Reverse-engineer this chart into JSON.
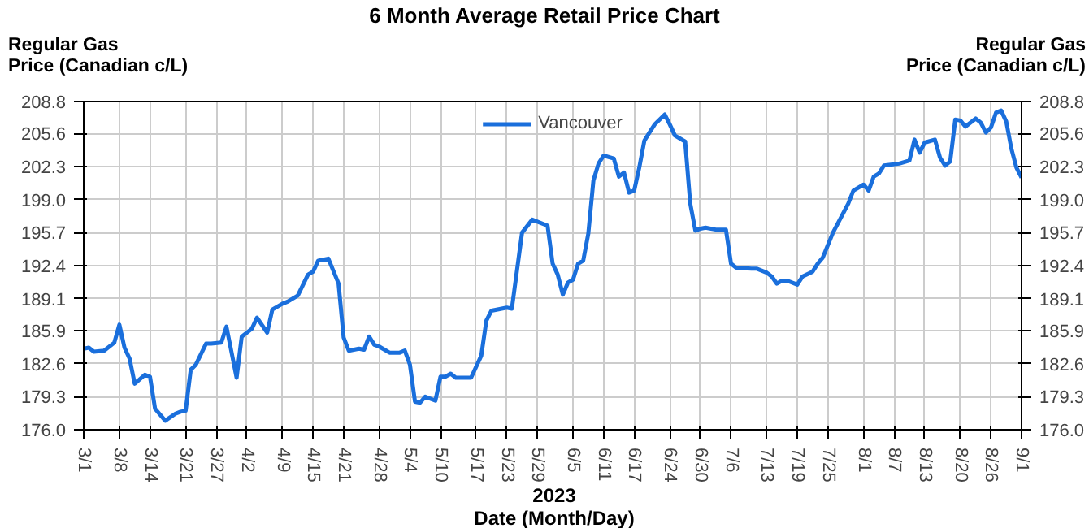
{
  "chart_data": {
    "type": "line",
    "title": "6 Month Average Retail Price Chart",
    "ylabel": "Regular Gas\nPrice (Canadian c/L)",
    "y2label": "Regular Gas\nPrice (Canadian c/L)",
    "xlabel": "Date (Month/Day)",
    "annotations": [
      "2023"
    ],
    "legend": "top",
    "grid": true,
    "xlim": [
      "2023-03-01",
      "2023-09-01"
    ],
    "xticks": [
      {
        "value": "2023-03-01",
        "label": "3/1"
      },
      {
        "value": "2023-03-08",
        "label": "3/8"
      },
      {
        "value": "2023-03-14",
        "label": "3/14"
      },
      {
        "value": "2023-03-21",
        "label": "3/21"
      },
      {
        "value": "2023-03-27",
        "label": "3/27"
      },
      {
        "value": "2023-04-02",
        "label": "4/2"
      },
      {
        "value": "2023-04-09",
        "label": "4/9"
      },
      {
        "value": "2023-04-15",
        "label": "4/15"
      },
      {
        "value": "2023-04-21",
        "label": "4/21"
      },
      {
        "value": "2023-04-28",
        "label": "4/28"
      },
      {
        "value": "2023-05-04",
        "label": "5/4"
      },
      {
        "value": "2023-05-10",
        "label": "5/10"
      },
      {
        "value": "2023-05-17",
        "label": "5/17"
      },
      {
        "value": "2023-05-23",
        "label": "5/23"
      },
      {
        "value": "2023-05-29",
        "label": "5/29"
      },
      {
        "value": "2023-06-05",
        "label": "6/5"
      },
      {
        "value": "2023-06-11",
        "label": "6/11"
      },
      {
        "value": "2023-06-17",
        "label": "6/17"
      },
      {
        "value": "2023-06-24",
        "label": "6/24"
      },
      {
        "value": "2023-06-30",
        "label": "6/30"
      },
      {
        "value": "2023-07-06",
        "label": "7/6"
      },
      {
        "value": "2023-07-13",
        "label": "7/13"
      },
      {
        "value": "2023-07-19",
        "label": "7/19"
      },
      {
        "value": "2023-07-25",
        "label": "7/25"
      },
      {
        "value": "2023-08-01",
        "label": "8/1"
      },
      {
        "value": "2023-08-07",
        "label": "8/7"
      },
      {
        "value": "2023-08-13",
        "label": "8/13"
      },
      {
        "value": "2023-08-20",
        "label": "8/20"
      },
      {
        "value": "2023-08-26",
        "label": "8/26"
      },
      {
        "value": "2023-09-01",
        "label": "9/1"
      }
    ],
    "ylim": [
      176.0,
      208.8
    ],
    "yticks": [
      {
        "value": 176,
        "label": "176.0"
      },
      179.3,
      182.6,
      185.9,
      189.1,
      192.4,
      195.7,
      {
        "value": 199,
        "label": "199.0"
      },
      202.3,
      205.6,
      208.8
    ],
    "y2lim": [
      176.0,
      208.8
    ],
    "y2ticks": [
      {
        "value": 176,
        "label": "176.0"
      },
      179.3,
      182.6,
      185.9,
      189.1,
      192.4,
      195.7,
      {
        "value": 199,
        "label": "199.0"
      },
      202.3,
      205.6,
      208.8
    ],
    "x": [
      "2023-03-01",
      "2023-03-02",
      "2023-03-03",
      "2023-03-05",
      "2023-03-07",
      "2023-03-08",
      "2023-03-09",
      "2023-03-10",
      "2023-03-11",
      "2023-03-13",
      "2023-03-14",
      "2023-03-15",
      "2023-03-17",
      "2023-03-19",
      "2023-03-20",
      "2023-03-21",
      "2023-03-22",
      "2023-03-23",
      "2023-03-25",
      "2023-03-26",
      "2023-03-28",
      "2023-03-29",
      "2023-03-31",
      "2023-04-01",
      "2023-04-03",
      "2023-04-04",
      "2023-04-06",
      "2023-04-07",
      "2023-04-09",
      "2023-04-10",
      "2023-04-12",
      "2023-04-14",
      "2023-04-15",
      "2023-04-16",
      "2023-04-18",
      "2023-04-20",
      "2023-04-21",
      "2023-04-22",
      "2023-04-24",
      "2023-04-25",
      "2023-04-26",
      "2023-04-27",
      "2023-04-28",
      "2023-04-30",
      "2023-05-02",
      "2023-05-03",
      "2023-05-04",
      "2023-05-05",
      "2023-05-06",
      "2023-05-07",
      "2023-05-09",
      "2023-05-10",
      "2023-05-11",
      "2023-05-12",
      "2023-05-13",
      "2023-05-16",
      "2023-05-18",
      "2023-05-19",
      "2023-05-20",
      "2023-05-23",
      "2023-05-24",
      "2023-05-26",
      "2023-05-28",
      "2023-05-31",
      "2023-06-01",
      "2023-06-02",
      "2023-06-03",
      "2023-06-04",
      "2023-06-05",
      "2023-06-06",
      "2023-06-07",
      "2023-06-08",
      "2023-06-09",
      "2023-06-10",
      "2023-06-11",
      "2023-06-13",
      "2023-06-14",
      "2023-06-15",
      "2023-06-16",
      "2023-06-17",
      "2023-06-18",
      "2023-06-19",
      "2023-06-20",
      "2023-06-21",
      "2023-06-23",
      "2023-06-24",
      "2023-06-25",
      "2023-06-27",
      "2023-06-28",
      "2023-06-29",
      "2023-06-30",
      "2023-07-01",
      "2023-07-03",
      "2023-07-05",
      "2023-07-06",
      "2023-07-07",
      "2023-07-10",
      "2023-07-11",
      "2023-07-13",
      "2023-07-14",
      "2023-07-15",
      "2023-07-16",
      "2023-07-17",
      "2023-07-19",
      "2023-07-20",
      "2023-07-22",
      "2023-07-23",
      "2023-07-24",
      "2023-07-26",
      "2023-07-29",
      "2023-07-30",
      "2023-08-01",
      "2023-08-02",
      "2023-08-03",
      "2023-08-04",
      "2023-08-05",
      "2023-08-08",
      "2023-08-10",
      "2023-08-11",
      "2023-08-12",
      "2023-08-13",
      "2023-08-15",
      "2023-08-16",
      "2023-08-17",
      "2023-08-18",
      "2023-08-19",
      "2023-08-20",
      "2023-08-21",
      "2023-08-23",
      "2023-08-24",
      "2023-08-25",
      "2023-08-26",
      "2023-08-27",
      "2023-08-28",
      "2023-08-29",
      "2023-08-30",
      "2023-08-31",
      "2023-09-01"
    ],
    "series": [
      {
        "name": "Vancouver",
        "color": "#1a6fdc",
        "values": [
          184.1,
          184.2,
          183.8,
          183.9,
          184.7,
          186.5,
          184.2,
          183.1,
          180.6,
          181.5,
          181.3,
          178.1,
          176.9,
          177.6,
          177.8,
          177.9,
          182.0,
          182.5,
          184.6,
          184.6,
          184.7,
          186.3,
          181.2,
          185.3,
          186.1,
          187.2,
          185.7,
          188.0,
          188.6,
          188.8,
          189.4,
          191.5,
          191.8,
          192.9,
          193.1,
          190.6,
          185.2,
          183.9,
          184.1,
          184.0,
          185.3,
          184.5,
          184.3,
          183.7,
          183.7,
          183.9,
          182.5,
          178.8,
          178.7,
          179.3,
          178.9,
          181.3,
          181.3,
          181.6,
          181.2,
          181.2,
          183.4,
          186.9,
          187.9,
          188.2,
          188.1,
          195.7,
          197.0,
          196.4,
          192.6,
          191.5,
          189.5,
          190.7,
          191.0,
          192.6,
          192.9,
          195.6,
          200.9,
          202.6,
          203.4,
          203.1,
          201.3,
          201.7,
          199.7,
          199.9,
          202.2,
          204.9,
          205.7,
          206.5,
          207.5,
          206.5,
          205.4,
          204.8,
          198.6,
          195.9,
          196.1,
          196.2,
          196.0,
          196.0,
          192.6,
          192.2,
          192.1,
          192.1,
          191.7,
          191.3,
          190.6,
          190.9,
          190.9,
          190.5,
          191.3,
          191.8,
          192.6,
          193.2,
          195.7,
          198.6,
          199.9,
          200.5,
          199.9,
          201.3,
          201.6,
          202.4,
          202.6,
          202.9,
          205.0,
          203.7,
          204.7,
          205.0,
          203.2,
          202.4,
          202.8,
          207.0,
          206.9,
          206.3,
          207.1,
          206.7,
          205.7,
          206.2,
          207.7,
          207.9,
          206.8,
          204.1,
          202.2,
          201.2
        ]
      }
    ]
  }
}
